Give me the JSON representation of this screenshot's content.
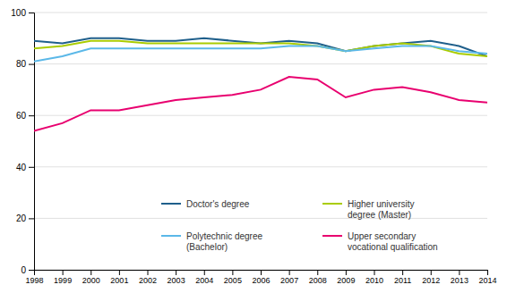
{
  "chart_data": {
    "type": "line",
    "x": [
      1998,
      1999,
      2000,
      2001,
      2002,
      2003,
      2004,
      2005,
      2006,
      2007,
      2008,
      2009,
      2010,
      2011,
      2012,
      2013,
      2014
    ],
    "series": [
      {
        "name": "Doctor's degree",
        "color": "#1F5F8B",
        "values": [
          89,
          88,
          90,
          90,
          89,
          89,
          90,
          89,
          88,
          89,
          88,
          85,
          87,
          88,
          89,
          87,
          83
        ]
      },
      {
        "name": "Higher university\ndegree (Master)",
        "color": "#AACC00",
        "values": [
          86,
          87,
          89,
          89,
          88,
          88,
          88,
          88,
          88,
          88,
          87,
          85,
          87,
          88,
          87,
          84,
          83
        ]
      },
      {
        "name": "Polytechnic degree\n(Bachelor)",
        "color": "#5BB8E8",
        "values": [
          81,
          83,
          86,
          86,
          86,
          86,
          86,
          86,
          86,
          87,
          87,
          85,
          86,
          87,
          87,
          85,
          84
        ]
      },
      {
        "name": "Upper secondary\nvocational qualification",
        "color": "#E8006F",
        "values": [
          54,
          57,
          62,
          62,
          64,
          66,
          67,
          68,
          70,
          75,
          74,
          67,
          70,
          71,
          69,
          66,
          65
        ]
      }
    ],
    "xlim": [
      1998,
      2014
    ],
    "xticks": [
      1998,
      1999,
      2000,
      2001,
      2002,
      2003,
      2004,
      2005,
      2006,
      2007,
      2008,
      2009,
      2010,
      2011,
      2012,
      2013,
      2014
    ],
    "ylim": [
      0,
      100
    ],
    "yticks": [
      0,
      20,
      40,
      60,
      80,
      100
    ],
    "grid": true,
    "legend": "lower right"
  }
}
